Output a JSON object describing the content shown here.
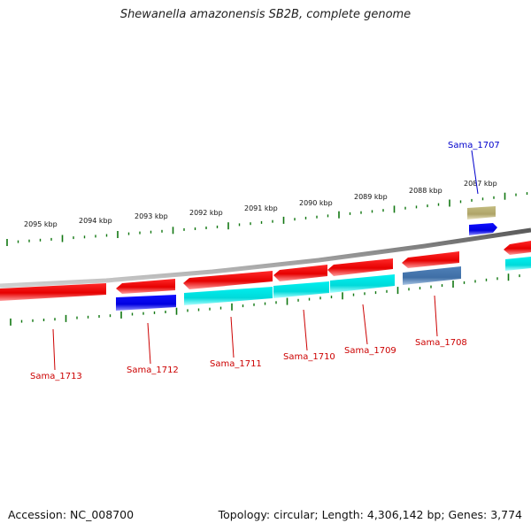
{
  "title": "Shewanella amazonensis SB2B, complete genome",
  "footer": {
    "accession": "Accession: NC_008700",
    "summary": "Topology: circular; Length: 4,306,142 bp; Genes: 3,774"
  },
  "ruler": {
    "labels": [
      "2095 kbp",
      "2094 kbp",
      "2093 kbp",
      "2092 kbp",
      "2091 kbp",
      "2090 kbp",
      "2089 kbp",
      "2088 kbp",
      "2087 kbp"
    ]
  },
  "genes": [
    {
      "name": "Sama_1713",
      "color": "#cc0000"
    },
    {
      "name": "Sama_1712",
      "color": "#cc0000"
    },
    {
      "name": "Sama_1711",
      "color": "#cc0000"
    },
    {
      "name": "Sama_1710",
      "color": "#cc0000"
    },
    {
      "name": "Sama_1709",
      "color": "#cc0000"
    },
    {
      "name": "Sama_1708",
      "color": "#cc0000"
    },
    {
      "name": "Sama_1707",
      "color": "#0000cc"
    }
  ],
  "colors": {
    "cds": "#ee0000",
    "cog_blue": "#0000ee",
    "cog_cyan": "#00dddd",
    "cog_steel": "#4a7ab0",
    "cog_olive": "#b8b070",
    "backbone": "#888888",
    "ticks": "#117711"
  }
}
